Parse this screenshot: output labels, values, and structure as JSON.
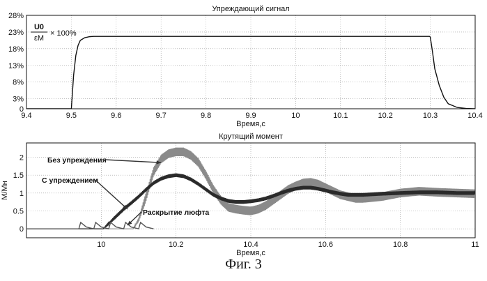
{
  "figure_caption": "Фиг. 3",
  "chart_data": [
    {
      "type": "line",
      "title": "Упреждающий сигнал",
      "xlabel": "Время,с",
      "ylabel": "",
      "xlim": [
        9.4,
        10.4
      ],
      "ylim": [
        0,
        0.28
      ],
      "grid": true,
      "x_ticks": [
        "9.4",
        "9.5",
        "9.6",
        "9.7",
        "9.8",
        "9.9",
        "10",
        "10.1",
        "10.2",
        "10.3",
        "10.4"
      ],
      "y_ticks": [
        "0",
        "3%",
        "8%",
        "13%",
        "18%",
        "23%",
        "28%"
      ],
      "annotation": {
        "numerator": "U0",
        "denominator": "εM",
        "suffix": "× 100%"
      },
      "series": [
        {
          "color": "#111111",
          "x": [
            9.4,
            9.5,
            9.505,
            9.51,
            9.515,
            9.52,
            9.53,
            9.54,
            9.55,
            9.56,
            10.298,
            10.3,
            10.305,
            10.31,
            10.32,
            10.33,
            10.34,
            10.36,
            10.38,
            10.4
          ],
          "y": [
            0,
            0,
            0.1,
            0.16,
            0.19,
            0.205,
            0.213,
            0.216,
            0.217,
            0.217,
            0.217,
            0.215,
            0.17,
            0.12,
            0.07,
            0.035,
            0.015,
            0.004,
            0.001,
            0
          ]
        }
      ]
    },
    {
      "type": "line",
      "title": "Крутящий момент",
      "xlabel": "Время,с",
      "ylabel": "М/Мн",
      "xlim": [
        9.8,
        11.0
      ],
      "ylim": [
        -0.25,
        2.4
      ],
      "grid": true,
      "x_ticks": [
        "10",
        "10.2",
        "10.4",
        "10.6",
        "10.8",
        "11"
      ],
      "y_ticks": [
        "0",
        "0.5",
        "1",
        "1.5",
        "2"
      ],
      "annotations": [
        {
          "text": "Без упреждения",
          "target": [
            10.16,
            1.85
          ]
        },
        {
          "text": "С упреждением",
          "target": [
            10.07,
            0.55
          ]
        },
        {
          "text": "Раскрытие люфта",
          "target": [
            10.07,
            0.1
          ]
        }
      ],
      "series": [
        {
          "label": "Без упреждения",
          "color": "#8a8a8a",
          "ripple": 0.12,
          "x": [
            9.8,
            10.085,
            10.1,
            10.12,
            10.14,
            10.16,
            10.18,
            10.2,
            10.22,
            10.24,
            10.26,
            10.28,
            10.3,
            10.32,
            10.34,
            10.36,
            10.38,
            10.4,
            10.42,
            10.44,
            10.46,
            10.48,
            10.5,
            10.52,
            10.54,
            10.56,
            10.58,
            10.6,
            10.62,
            10.64,
            10.66,
            10.68,
            10.7,
            10.75,
            10.8,
            10.85,
            10.9,
            10.95,
            11.0
          ],
          "y": [
            0,
            0,
            0.25,
            0.9,
            1.6,
            1.95,
            2.1,
            2.15,
            2.15,
            2.05,
            1.85,
            1.5,
            1.1,
            0.8,
            0.6,
            0.55,
            0.52,
            0.5,
            0.55,
            0.65,
            0.8,
            0.95,
            1.1,
            1.2,
            1.28,
            1.3,
            1.25,
            1.15,
            1.05,
            0.95,
            0.9,
            0.85,
            0.85,
            0.9,
            1.0,
            1.05,
            1.02,
            1.0,
            0.98
          ]
        },
        {
          "label": "С упреждением",
          "color": "#2a2a2a",
          "ripple": 0.05,
          "x": [
            9.8,
            10.005,
            10.02,
            10.04,
            10.06,
            10.08,
            10.1,
            10.12,
            10.14,
            10.16,
            10.18,
            10.2,
            10.22,
            10.24,
            10.26,
            10.28,
            10.3,
            10.32,
            10.34,
            10.36,
            10.38,
            10.4,
            10.42,
            10.44,
            10.46,
            10.48,
            10.5,
            10.52,
            10.54,
            10.56,
            10.58,
            10.6,
            10.62,
            10.64,
            10.66,
            10.7,
            10.75,
            10.8,
            10.85,
            10.9,
            10.95,
            11.0
          ],
          "y": [
            0,
            0,
            0.15,
            0.35,
            0.55,
            0.72,
            0.9,
            1.1,
            1.28,
            1.4,
            1.47,
            1.5,
            1.47,
            1.38,
            1.25,
            1.1,
            0.95,
            0.85,
            0.78,
            0.75,
            0.75,
            0.77,
            0.8,
            0.85,
            0.92,
            1.0,
            1.07,
            1.12,
            1.15,
            1.15,
            1.12,
            1.07,
            1.02,
            0.98,
            0.95,
            0.95,
            0.98,
            1.0,
            1.02,
            1.02,
            1.0,
            1.0
          ]
        },
        {
          "label": "Раскрытие люфта",
          "color": "#555555",
          "ripple": 0,
          "x": [
            9.8,
            9.94,
            9.945,
            9.96,
            9.98,
            9.985,
            10.0,
            10.02,
            10.025,
            10.04,
            10.06,
            10.065,
            10.08,
            10.1,
            10.105,
            10.12,
            10.14
          ],
          "y": [
            0,
            0,
            0.18,
            0.05,
            0,
            0.18,
            0.05,
            0,
            0.18,
            0.05,
            0,
            0.18,
            0.05,
            0,
            0.18,
            0.05,
            0
          ]
        }
      ]
    }
  ]
}
